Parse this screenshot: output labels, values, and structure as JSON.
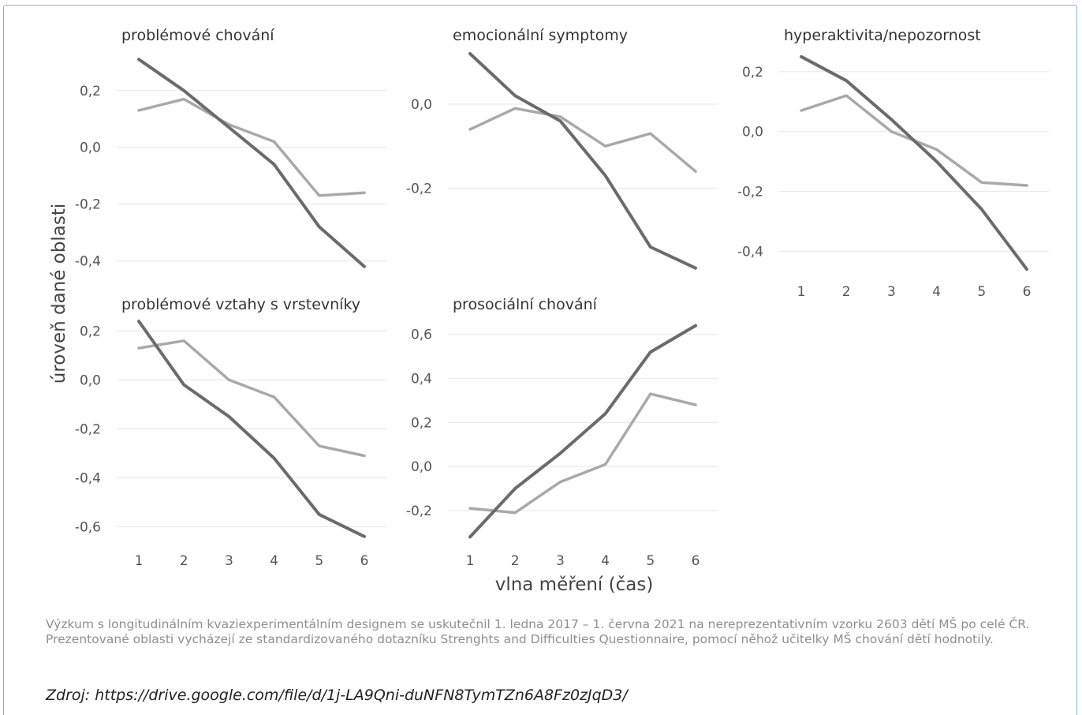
{
  "chart_data": {
    "type": "line",
    "ylabel": "úroveň dané oblasti",
    "xlabel": "vlna měření (čas)",
    "x": [
      1,
      2,
      3,
      4,
      5,
      6
    ],
    "x_tick_labels": [
      "1",
      "2",
      "3",
      "4",
      "5",
      "6"
    ],
    "colors": {
      "dark_series": "#6b6b6b",
      "light_series": "#a9a9a9"
    },
    "grid": true,
    "panels": [
      {
        "title": "problémové chování",
        "ylim": [
          -0.44,
          0.33
        ],
        "y_ticks": [
          0.2,
          0.0,
          -0.2,
          -0.4
        ],
        "y_tick_labels": [
          "0,2",
          "0,0",
          "-0,2",
          "-0,4"
        ],
        "series": [
          {
            "values": [
              0.31,
              0.2,
              0.07,
              -0.06,
              -0.28,
              -0.42
            ]
          },
          {
            "values": [
              0.13,
              0.17,
              0.08,
              0.02,
              -0.17,
              -0.16
            ]
          }
        ]
      },
      {
        "title": "emocionální symptomy",
        "ylim": [
          -0.4,
          0.12
        ],
        "y_ticks": [
          0.0,
          -0.2
        ],
        "y_tick_labels": [
          "0,0",
          "-0,2"
        ],
        "series": [
          {
            "values": [
              0.12,
              0.02,
              -0.04,
              -0.17,
              -0.34,
              -0.39
            ]
          },
          {
            "values": [
              -0.06,
              -0.01,
              -0.03,
              -0.1,
              -0.07,
              -0.16
            ]
          }
        ]
      },
      {
        "title": "hyperaktivita/nepozornost",
        "ylim": [
          -0.47,
          0.26
        ],
        "y_ticks": [
          0.2,
          0.0,
          -0.2,
          -0.4
        ],
        "y_tick_labels": [
          "0,2",
          "0,0",
          "-0,2",
          "-0,4"
        ],
        "series": [
          {
            "values": [
              0.25,
              0.17,
              0.04,
              -0.1,
              -0.26,
              -0.46
            ]
          },
          {
            "values": [
              0.07,
              0.12,
              0.0,
              -0.06,
              -0.17,
              -0.18
            ]
          }
        ]
      },
      {
        "title": "problémové vztahy s vrstevníky",
        "ylim": [
          -0.66,
          0.24
        ],
        "y_ticks": [
          0.2,
          0.0,
          -0.2,
          -0.4,
          -0.6
        ],
        "y_tick_labels": [
          "0,2",
          "0,0",
          "-0,2",
          "-0,4",
          "-0,6"
        ],
        "series": [
          {
            "values": [
              0.24,
              -0.02,
              -0.15,
              -0.32,
              -0.55,
              -0.64
            ]
          },
          {
            "values": [
              0.13,
              0.16,
              0.0,
              -0.07,
              -0.27,
              -0.31
            ]
          }
        ]
      },
      {
        "title": "prosociální chování",
        "ylim": [
          -0.34,
          0.66
        ],
        "y_ticks": [
          0.6,
          0.4,
          0.2,
          0.0,
          -0.2
        ],
        "y_tick_labels": [
          "0,6",
          "0,4",
          "0,2",
          "0,0",
          "-0,2"
        ],
        "series": [
          {
            "values": [
              -0.32,
              -0.1,
              0.06,
              0.24,
              0.52,
              0.64
            ]
          },
          {
            "values": [
              -0.19,
              -0.21,
              -0.07,
              0.01,
              0.33,
              0.28
            ]
          }
        ]
      }
    ]
  },
  "caption": "Výzkum s longitudinálním kvaziexperimentálním designem se uskutečnil 1. ledna 2017 – 1. června 2021 na nereprezentativním vzorku 2603 dětí MŠ po celé ČR. Prezentované oblasti vycházejí ze standardizovaného dotazníku Strenghts and Difficulties Questionnaire, pomocí něhož učitelky MŠ chování dětí hodnotily.",
  "source": "Zdroj: https://drive.google.com/file/d/1j-LA9Qni-duNFN8TymTZn6A8Fz0zJqD3/"
}
